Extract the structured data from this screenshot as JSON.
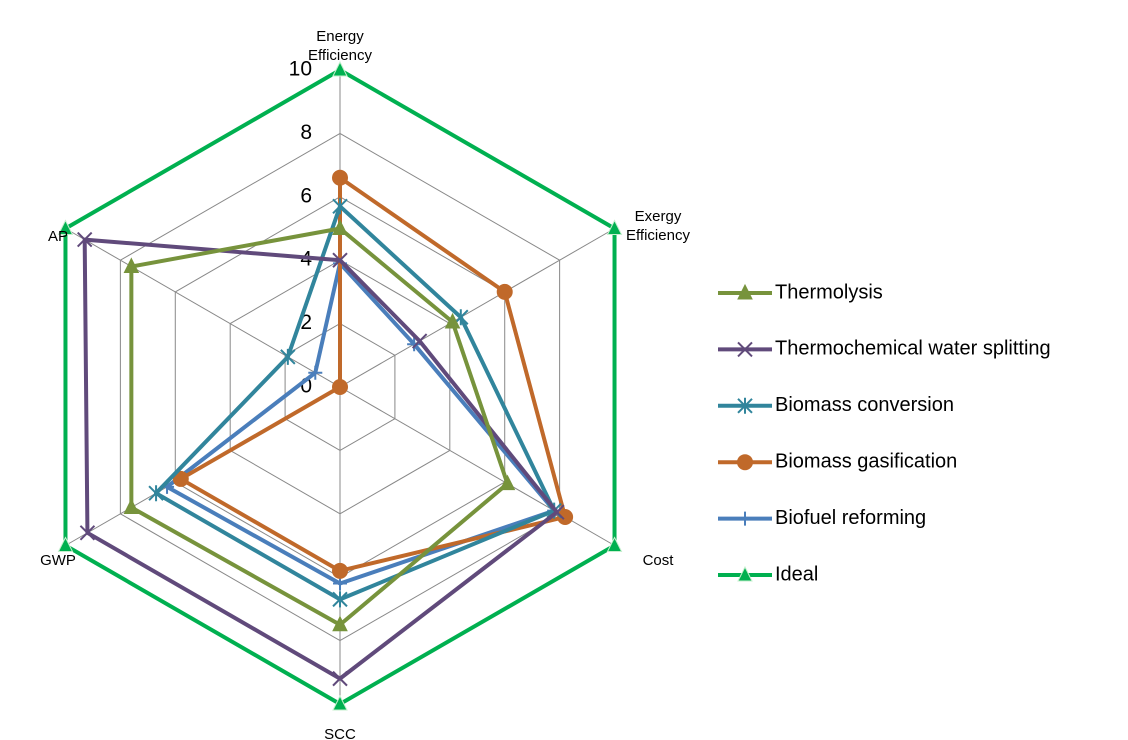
{
  "chart_data": {
    "type": "radar",
    "categories": [
      "Energy Efficiency",
      "Exergy Efficiency",
      "Cost",
      "SCC",
      "GWP",
      "AP"
    ],
    "rlim": [
      0,
      10
    ],
    "rticks": [
      0,
      2,
      4,
      6,
      8,
      10
    ],
    "grid": true,
    "legend": "right",
    "series": [
      {
        "name": "Thermolysis",
        "color": "#77933c",
        "marker": "triangle",
        "values": [
          5,
          4.1,
          6.1,
          7.5,
          7.6,
          7.6
        ]
      },
      {
        "name": "Thermochemical water splitting",
        "color": "#604a7b",
        "marker": "x",
        "values": [
          4,
          2.9,
          7.9,
          9.2,
          9.2,
          9.3
        ]
      },
      {
        "name": "Biomass conversion",
        "color": "#31859c",
        "marker": "star",
        "values": [
          5.7,
          4.4,
          7.8,
          6.7,
          6.7,
          1.9
        ]
      },
      {
        "name": "Biomass gasification",
        "color": "#c0692a",
        "marker": "circle",
        "values": [
          6.6,
          6,
          8.2,
          5.8,
          5.8,
          0
        ]
      },
      {
        "name": "Biofuel reforming",
        "color": "#4a7ebb",
        "marker": "plus",
        "values": [
          3.9,
          2.7,
          7.8,
          6.2,
          6.3,
          0.9
        ]
      },
      {
        "name": "Ideal",
        "color": "#00b050",
        "marker": "triangle",
        "values": [
          10,
          10,
          10,
          10,
          10,
          10
        ]
      }
    ]
  }
}
